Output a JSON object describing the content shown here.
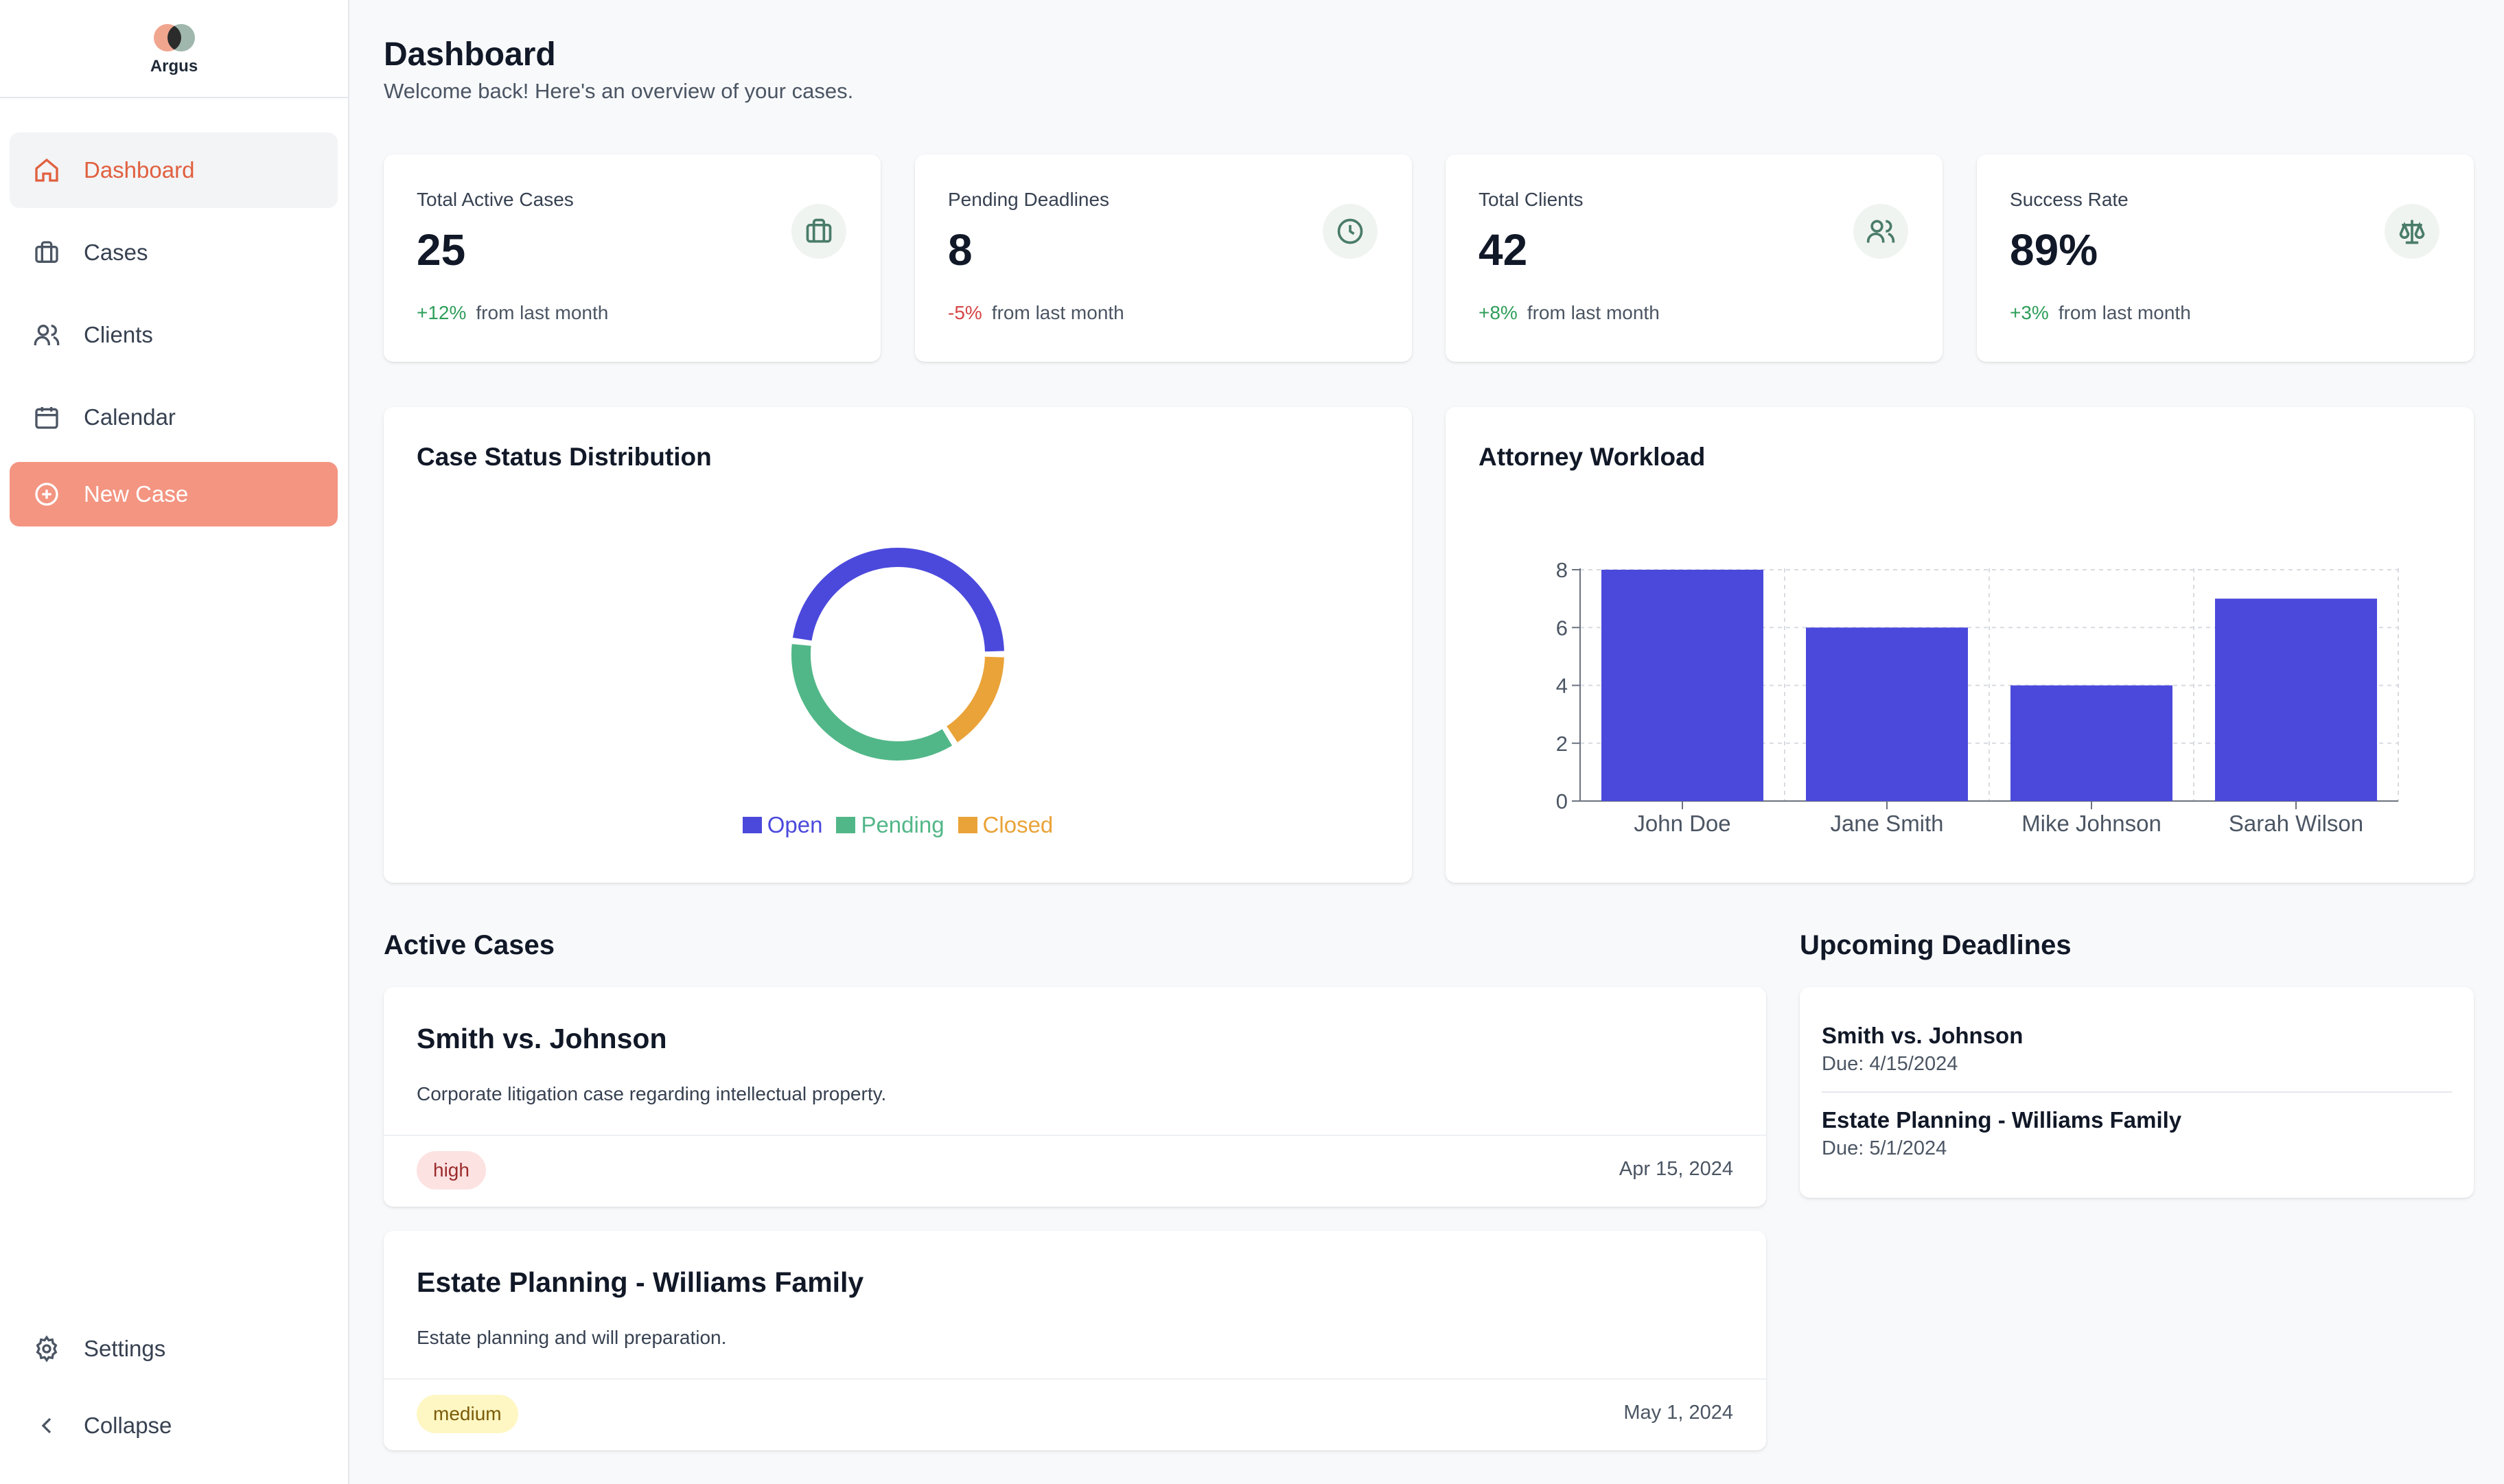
{
  "brand": {
    "name": "Argus"
  },
  "sidebar": {
    "items": [
      {
        "label": "Dashboard",
        "icon": "home-icon"
      },
      {
        "label": "Cases",
        "icon": "briefcase-icon"
      },
      {
        "label": "Clients",
        "icon": "users-icon"
      },
      {
        "label": "Calendar",
        "icon": "calendar-icon"
      },
      {
        "label": "New Case",
        "icon": "plus-circle-icon"
      }
    ],
    "bottom": [
      {
        "label": "Settings",
        "icon": "gear-icon"
      },
      {
        "label": "Collapse",
        "icon": "chevron-left-icon"
      }
    ]
  },
  "header": {
    "title": "Dashboard",
    "subtitle": "Welcome back! Here's an overview of your cases."
  },
  "stats": [
    {
      "label": "Total Active Cases",
      "value": "25",
      "change": "+12%",
      "suffix": "from last month",
      "icon": "briefcase-icon"
    },
    {
      "label": "Pending Deadlines",
      "value": "8",
      "change": "-5%",
      "suffix": "from last month",
      "icon": "clock-icon"
    },
    {
      "label": "Total Clients",
      "value": "42",
      "change": "+8%",
      "suffix": "from last month",
      "icon": "users-icon"
    },
    {
      "label": "Success Rate",
      "value": "89%",
      "change": "+3%",
      "suffix": "from last month",
      "icon": "scale-icon"
    }
  ],
  "colors": {
    "open": "#4b49dc",
    "pending": "#52b788",
    "closed": "#eaa338",
    "accent": "#e0603f",
    "cta": "#f39581"
  },
  "chart_data": [
    {
      "type": "pie",
      "title": "Case Status Distribution",
      "categories": [
        "Open",
        "Pending",
        "Closed"
      ],
      "values": [
        12,
        9,
        4
      ],
      "colors": [
        "#4b49dc",
        "#52b788",
        "#eaa338"
      ],
      "legend": "bottom"
    },
    {
      "type": "bar",
      "title": "Attorney Workload",
      "categories": [
        "John Doe",
        "Jane Smith",
        "Mike Johnson",
        "Sarah Wilson"
      ],
      "values": [
        8,
        6,
        4,
        7
      ],
      "ylim": [
        0,
        8
      ],
      "yticks": [
        "0",
        "2",
        "4",
        "6",
        "8"
      ],
      "grid": true,
      "color": "#4b49dc"
    }
  ],
  "active_cases": {
    "title": "Active Cases",
    "items": [
      {
        "title": "Smith vs. Johnson",
        "description": "Corporate litigation case regarding intellectual property.",
        "priority": "high",
        "date": "Apr 15, 2024"
      },
      {
        "title": "Estate Planning - Williams Family",
        "description": "Estate planning and will preparation.",
        "priority": "medium",
        "date": "May 1, 2024"
      }
    ]
  },
  "deadlines": {
    "title": "Upcoming Deadlines",
    "items": [
      {
        "title": "Smith vs. Johnson",
        "due": "Due: 4/15/2024"
      },
      {
        "title": "Estate Planning - Williams Family",
        "due": "Due: 5/1/2024"
      }
    ]
  }
}
